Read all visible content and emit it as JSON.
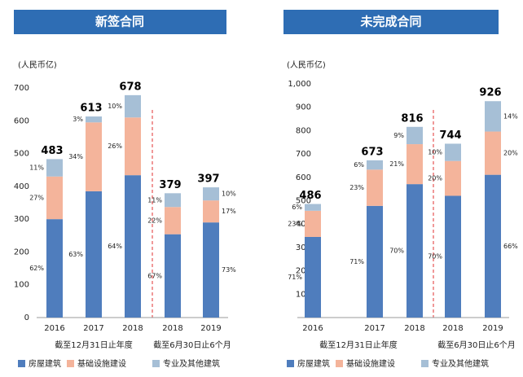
{
  "chart_data": [
    {
      "type": "bar",
      "stacked": true,
      "title": "新签合同",
      "unit_label": "(人民币亿)",
      "categories": [
        "2016",
        "2017",
        "2018",
        "2018",
        "2019"
      ],
      "groups": [
        "截至12月31日止年度",
        "截至6月30日止6个月"
      ],
      "series": [
        {
          "name": "房屋建筑",
          "color": "#4f7dbd",
          "values": [
            300,
            385,
            434,
            254,
            290
          ],
          "share_labels": [
            "62%",
            "63%",
            "64%",
            "67%",
            "73%"
          ]
        },
        {
          "name": "基础设施建设",
          "color": "#f4b49b",
          "values": [
            130,
            210,
            176,
            83,
            67
          ],
          "share_labels": [
            "27%",
            "34%",
            "26%",
            "22%",
            "17%"
          ]
        },
        {
          "name": "专业及其他建筑",
          "color": "#a6bfd6",
          "values": [
            53,
            18,
            68,
            42,
            40
          ],
          "share_labels": [
            "11%",
            "3%",
            "10%",
            "11%",
            "10%"
          ]
        }
      ],
      "totals": [
        483,
        613,
        678,
        379,
        397
      ],
      "ylim": [
        0,
        700
      ],
      "yticks": [
        0,
        100,
        200,
        300,
        400,
        500,
        600,
        700
      ]
    },
    {
      "type": "bar",
      "stacked": true,
      "title": "未完成合同",
      "unit_label": "(人民币亿)",
      "categories": [
        "2016",
        "2017",
        "2018",
        "2018",
        "2019"
      ],
      "groups": [
        "截至12月31日止年度",
        "截至6月30日止6个月"
      ],
      "series": [
        {
          "name": "房屋建筑",
          "color": "#4f7dbd",
          "values": [
            345,
            478,
            571,
            521,
            611
          ],
          "share_labels": [
            "71%",
            "71%",
            "70%",
            "70%",
            "66%"
          ]
        },
        {
          "name": "基础设施建设",
          "color": "#f4b49b",
          "values": [
            112,
            155,
            171,
            149,
            185
          ],
          "share_labels": [
            "23%",
            "23%",
            "21%",
            "20%",
            "20%"
          ]
        },
        {
          "name": "专业及其他建筑",
          "color": "#a6bfd6",
          "values": [
            29,
            40,
            74,
            74,
            130
          ],
          "share_labels": [
            "6%",
            "6%",
            "9%",
            "10%",
            "14%"
          ]
        }
      ],
      "totals": [
        486,
        673,
        816,
        744,
        926
      ],
      "ylim": [
        0,
        1000
      ],
      "yticks": [
        {
          "value": 0,
          "label": "-"
        },
        100,
        200,
        300,
        400,
        500,
        600,
        700,
        800,
        900,
        {
          "value": 1000,
          "label": "1,000"
        }
      ]
    }
  ]
}
